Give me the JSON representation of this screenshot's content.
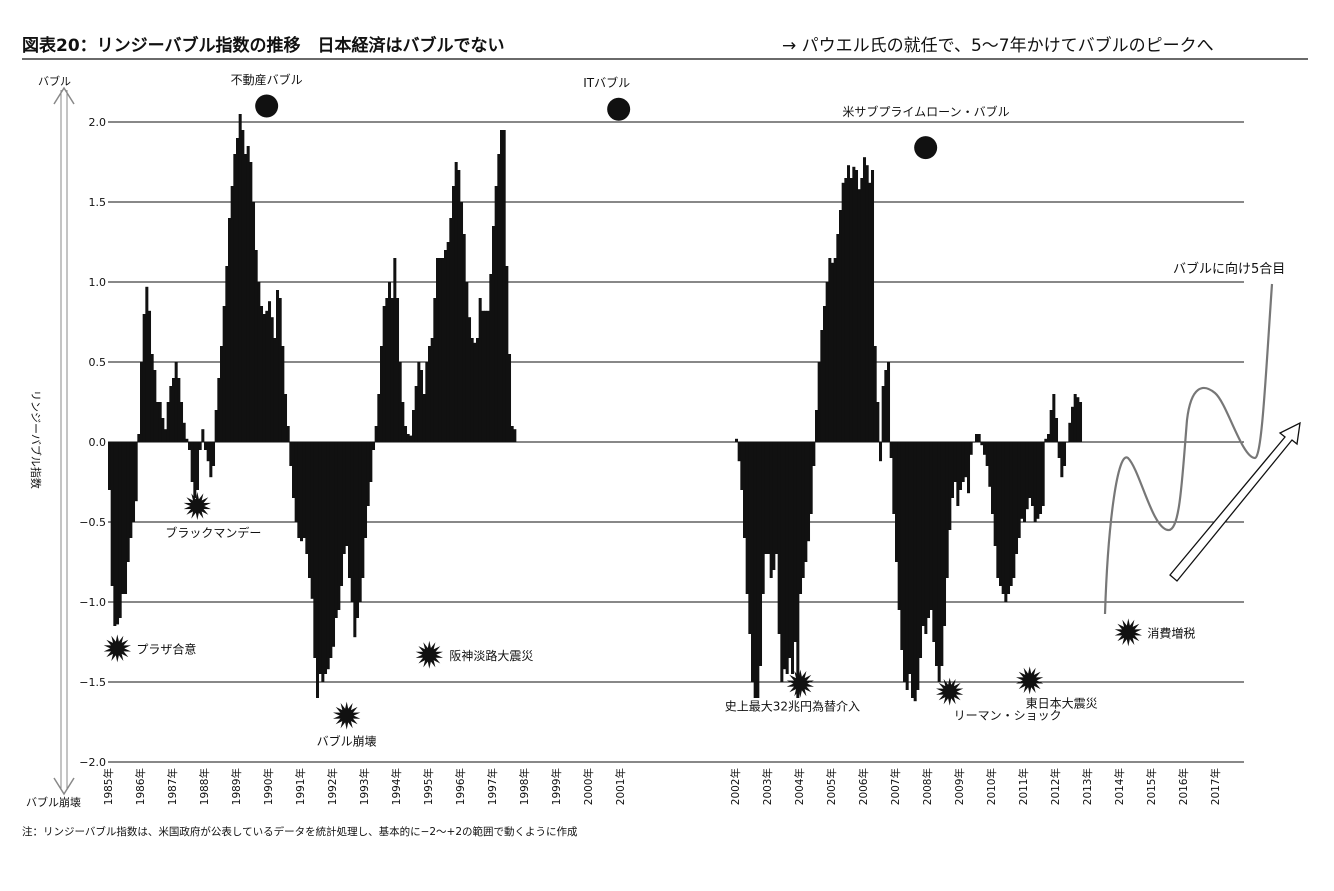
{
  "header": {
    "title_prefix": "図表20",
    "title_main": "：リンジーバブル指数の推移　日本経済はバブルでない",
    "title_right": "→ パウエル氏の就任で、5〜7年かけてバブルのピークへ"
  },
  "side_axis": {
    "top": "バブル",
    "middle": "リンジーバブル指数",
    "bottom": "バブル崩壊"
  },
  "footnote": "注：リンジーバブル指数は、米国政府が公表しているデータを統計処理し、基本的に−2〜+2の範囲で動くように作成",
  "chart_data": {
    "type": "bar",
    "ylabel": "リンジーバブル指数",
    "ylim": [
      -2.0,
      2.2
    ],
    "y_ticks": [
      "2.0",
      "1.5",
      "1.0",
      "0.5",
      "0.0",
      "-0.5",
      "-1.0",
      "-1.5",
      "-2.0"
    ],
    "grid": true,
    "x_ticks": [
      "1985年",
      "1986年",
      "1987年",
      "1988年",
      "1989年",
      "1990年",
      "1991年",
      "1992年",
      "1993年",
      "1994年",
      "1995年",
      "1996年",
      "1997年",
      "1998年",
      "1999年",
      "2000年",
      "2001年",
      "2002年",
      "2003年",
      "2004年",
      "2005年",
      "2006年",
      "2007年",
      "2008年",
      "2009年",
      "2010年",
      "2011年",
      "2012年",
      "2013年",
      "2014年",
      "2015年",
      "2016年",
      "2017年"
    ],
    "series_note": "Monthly values; no data plotted between 2001 and 2002",
    "period1": {
      "start": "1985-01",
      "values": [
        -0.3,
        -0.9,
        -1.15,
        -1.14,
        -1.1,
        -0.95,
        -0.95,
        -0.75,
        -0.6,
        -0.5,
        -0.37,
        0.05,
        0.5,
        0.8,
        0.97,
        0.82,
        0.55,
        0.45,
        0.25,
        0.25,
        0.15,
        0.08,
        0.25,
        0.35,
        0.4,
        0.5,
        0.4,
        0.25,
        0.12,
        0.02,
        -0.05,
        -0.25,
        -0.35,
        -0.3,
        -0.05,
        0.08,
        -0.05,
        -0.12,
        -0.22,
        -0.15,
        0.2,
        0.4,
        0.6,
        0.85,
        1.1,
        1.4,
        1.6,
        1.8,
        1.9,
        2.05,
        1.95,
        1.8,
        1.85,
        1.75,
        1.5,
        1.2,
        1.0,
        0.85,
        0.8,
        0.82,
        0.88,
        0.78,
        0.65,
        0.95,
        0.9,
        0.6,
        0.3,
        0.1,
        -0.15,
        -0.35,
        -0.5,
        -0.6,
        -0.62,
        -0.6,
        -0.7,
        -0.85,
        -0.98,
        -1.35,
        -1.6,
        -1.45,
        -1.5,
        -1.45,
        -1.42,
        -1.35,
        -1.28,
        -1.1,
        -1.05,
        -0.9,
        -0.7,
        -0.65,
        -0.85,
        -1.0,
        -1.22,
        -1.1,
        -1.0,
        -0.85,
        -0.6,
        -0.4,
        -0.25,
        -0.05,
        0.1,
        0.3,
        0.6,
        0.85,
        0.9,
        1.0,
        0.9,
        1.15,
        0.9,
        0.5,
        0.25,
        0.1,
        0.05,
        0.04,
        0.2,
        0.35,
        0.5,
        0.45,
        0.3,
        0.5,
        0.6,
        0.65,
        0.9,
        1.15,
        1.15,
        1.15,
        1.2,
        1.25,
        1.4,
        1.6,
        1.75,
        1.7,
        1.5,
        1.3,
        1.0,
        0.78,
        0.65,
        0.62,
        0.65,
        0.9,
        0.82,
        0.82,
        0.82,
        1.05,
        1.35,
        1.6,
        1.8,
        1.95,
        1.95,
        1.1,
        0.55,
        0.1,
        0.08
      ]
    },
    "period2": {
      "start": "2002-01",
      "values": [
        0.02,
        -0.12,
        -0.3,
        -0.6,
        -0.95,
        -1.2,
        -1.5,
        -1.6,
        -1.6,
        -1.4,
        -0.95,
        -0.7,
        -0.7,
        -0.85,
        -0.8,
        -0.7,
        -1.2,
        -1.5,
        -1.42,
        -1.45,
        -1.35,
        -1.45,
        -1.25,
        -1.6,
        -0.95,
        -0.85,
        -0.75,
        -0.62,
        -0.45,
        -0.15,
        0.2,
        0.5,
        0.7,
        0.85,
        1.0,
        1.15,
        1.12,
        1.15,
        1.3,
        1.45,
        1.62,
        1.65,
        1.73,
        1.65,
        1.72,
        1.7,
        1.58,
        1.65,
        1.78,
        1.73,
        1.62,
        1.7,
        0.6,
        0.25,
        -0.12,
        0.35,
        0.45,
        0.5,
        -0.1,
        -0.45,
        -0.75,
        -1.05,
        -1.3,
        -1.5,
        -1.55,
        -1.45,
        -1.6,
        -1.62,
        -1.55,
        -1.35,
        -1.15,
        -1.2,
        -1.1,
        -1.05,
        -1.25,
        -1.4,
        -1.5,
        -1.4,
        -1.15,
        -0.85,
        -0.55,
        -0.35,
        -0.25,
        -0.4,
        -0.3,
        -0.25,
        -0.22,
        -0.32,
        -0.08,
        0.0,
        0.05,
        0.05,
        -0.02,
        -0.08,
        -0.15,
        -0.28,
        -0.45,
        -0.65,
        -0.85,
        -0.9,
        -0.95,
        -1.0,
        -0.95,
        -0.9,
        -0.85,
        -0.7,
        -0.6,
        -0.48,
        -0.5,
        -0.42,
        -0.35,
        -0.4,
        -0.5,
        -0.48,
        -0.45,
        -0.4,
        0.02,
        0.05,
        0.2,
        0.3,
        0.15,
        -0.1,
        -0.22,
        -0.15,
        0.0,
        0.12,
        0.22,
        0.3,
        0.28,
        0.25
      ]
    },
    "annotations": {
      "bubbles": [
        {
          "label": "不動産バブル",
          "date": "1989-12",
          "y": 2.1
        },
        {
          "label": "ITバブル",
          "date": "2000-12",
          "y": 2.08
        },
        {
          "label": "米サブプライムローン・バブル",
          "date": "2007-12",
          "y": 1.84
        }
      ],
      "crashes": [
        {
          "label": "プラザ合意",
          "date": "1985-04",
          "y": -1.29
        },
        {
          "label": "ブラックマンデー",
          "date": "1987-10",
          "y": -0.4
        },
        {
          "label": "バブル崩壊",
          "date": "1992-06",
          "y": -1.71
        },
        {
          "label": "阪神淡路大震災",
          "date": "1995-01",
          "y": -1.33
        },
        {
          "label": "史上最大32兆円為替介入",
          "date": "2004-01",
          "y": -1.51
        },
        {
          "label": "リーマン・ショック",
          "date": "2008-09",
          "y": -1.56
        },
        {
          "label": "東日本大震災",
          "date": "2011-03",
          "y": -1.49
        },
        {
          "label": "消費増税",
          "date": "2014-04",
          "y": -1.19
        }
      ],
      "projection_label": "バブルに向け5合目"
    }
  }
}
